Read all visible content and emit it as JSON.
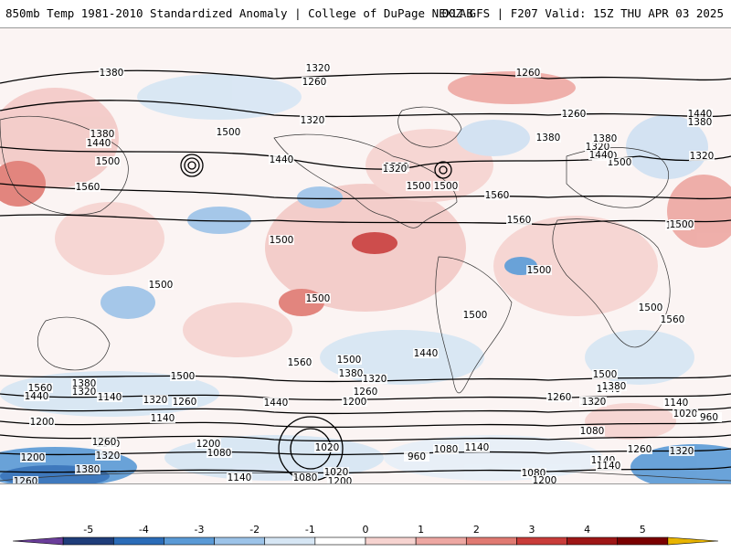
{
  "header": {
    "left_title": "850mb Temp 1981-2010 Standardized Anomaly | College of DuPage NEXLAB",
    "right_title": "00Z GFS | F207 Valid: 15Z THU APR 03 2025"
  },
  "colorbar": {
    "ticks": [
      "-5",
      "-4",
      "-3",
      "-2",
      "-1",
      "0",
      "1",
      "2",
      "3",
      "4",
      "5"
    ],
    "colors": [
      "#6a3d9a",
      "#1f3d7a",
      "#2b6cb8",
      "#5a9ad6",
      "#9cc3e8",
      "#d6e6f4",
      "#ffffff",
      "#f6d3d0",
      "#eda7a2",
      "#e07a72",
      "#c93c3a",
      "#9e1616",
      "#7a0000",
      "#e8b400"
    ]
  },
  "map": {
    "contour_labels": [
      "1380",
      "1320",
      "1260",
      "1260",
      "1320",
      "1260",
      "1440",
      "1380",
      "1380",
      "1440",
      "1500",
      "1320",
      "1500",
      "1500",
      "1560",
      "1320",
      "1380",
      "1440",
      "1380",
      "1440",
      "1500",
      "1500",
      "1560",
      "1320",
      "1500",
      "1440",
      "1560",
      "1560",
      "1500",
      "1500",
      "1500",
      "1500",
      "1500",
      "1500",
      "1560",
      "1500",
      "1560",
      "1500",
      "1440",
      "1500",
      "1500",
      "1380",
      "1320",
      "1560",
      "1440",
      "1140",
      "1320",
      "1260",
      "1440",
      "1200",
      "1320",
      "1260",
      "1200",
      "1260",
      "1380",
      "1320",
      "1440",
      "1380",
      "1320",
      "1140",
      "1020",
      "960",
      "1080",
      "1140",
      "1200",
      "1140",
      "1260",
      "1320",
      "1380",
      "1200",
      "1080",
      "1020",
      "960",
      "1080",
      "1140",
      "1140",
      "1080",
      "1020",
      "1200",
      "1140",
      "1080",
      "1200",
      "1260",
      "1320",
      "1260",
      "1140"
    ]
  }
}
